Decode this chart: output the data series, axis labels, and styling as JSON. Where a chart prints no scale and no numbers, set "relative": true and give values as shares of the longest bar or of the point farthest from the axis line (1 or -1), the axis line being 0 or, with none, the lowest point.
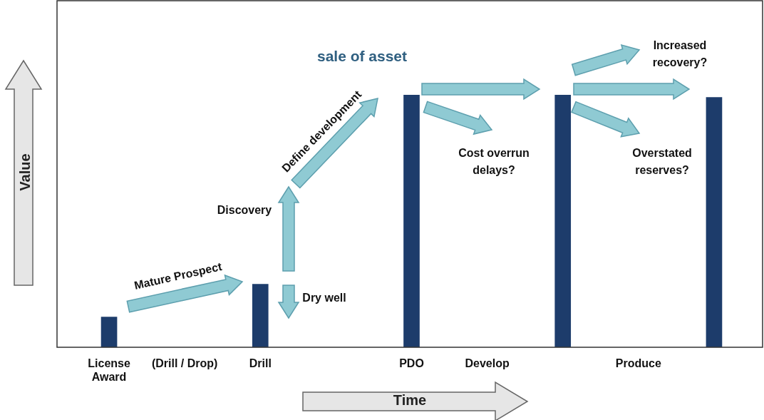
{
  "chart_data": {
    "type": "bar",
    "title": "sale of asset",
    "xlabel": "Time",
    "ylabel": "Value",
    "categories": [
      "License\nAward",
      "(Drill / Drop)",
      "Drill",
      null,
      "PDO",
      "Develop",
      null,
      "Produce",
      null
    ],
    "values": [
      0.12,
      null,
      0.25,
      null,
      1,
      null,
      1,
      null,
      0.99
    ],
    "color": "#1d3c6b",
    "relative": true,
    "grid": false,
    "legend": false,
    "annotations": [
      "Mature Prospect",
      "Discovery",
      "Dry well",
      "Define development",
      "Cost overrun\ndelays?",
      "Increased\nrecovery?",
      "Overstated\nreserves?"
    ]
  }
}
